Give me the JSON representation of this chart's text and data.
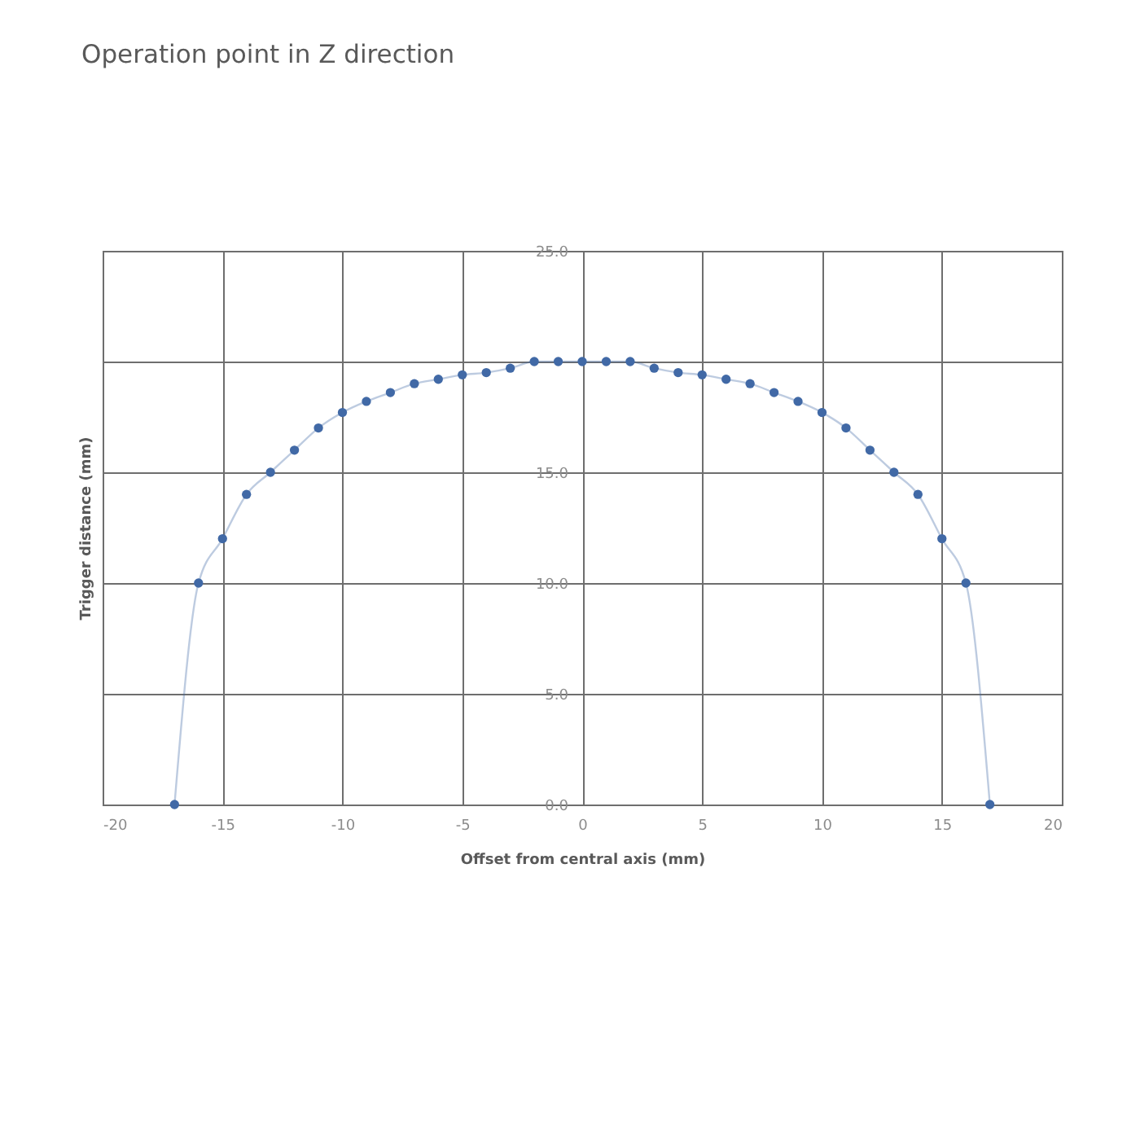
{
  "chart_data": {
    "type": "line",
    "title": "Operation point in Z direction",
    "xlabel": "Offset from central axis (mm)",
    "ylabel": "Trigger distance (mm)",
    "x": [
      -17,
      -16,
      -15,
      -14,
      -13,
      -12,
      -11,
      -10,
      -9,
      -8,
      -7,
      -6,
      -5,
      -4,
      -3,
      -2,
      -1,
      0,
      1,
      2,
      3,
      4,
      5,
      6,
      7,
      8,
      9,
      10,
      11,
      12,
      13,
      14,
      15,
      16,
      17
    ],
    "series": [
      {
        "color": "#4169a6",
        "values": [
          0,
          10,
          12,
          14,
          15,
          16,
          17,
          17.7,
          18.2,
          18.6,
          19.0,
          19.2,
          19.4,
          19.5,
          19.7,
          20,
          20,
          20,
          20,
          20,
          19.7,
          19.5,
          19.4,
          19.2,
          19.0,
          18.6,
          18.2,
          17.7,
          17,
          16,
          15,
          14,
          12,
          10,
          0
        ]
      }
    ],
    "xlim": [
      -20,
      20
    ],
    "xticks": [
      -20,
      -15,
      -10,
      -5,
      0,
      5,
      10,
      15,
      20
    ],
    "ylim": [
      0,
      25
    ],
    "yticks": [
      {
        "value": 0,
        "label": "0.0"
      },
      {
        "value": 5,
        "label": "5.0"
      },
      {
        "value": 10,
        "label": "10.0"
      },
      {
        "value": 15,
        "label": "15.0"
      },
      {
        "value": 20,
        "label": null
      },
      {
        "value": 25,
        "label": "25.0"
      }
    ],
    "grid": true,
    "marker": "circle",
    "line_style": "solid"
  }
}
